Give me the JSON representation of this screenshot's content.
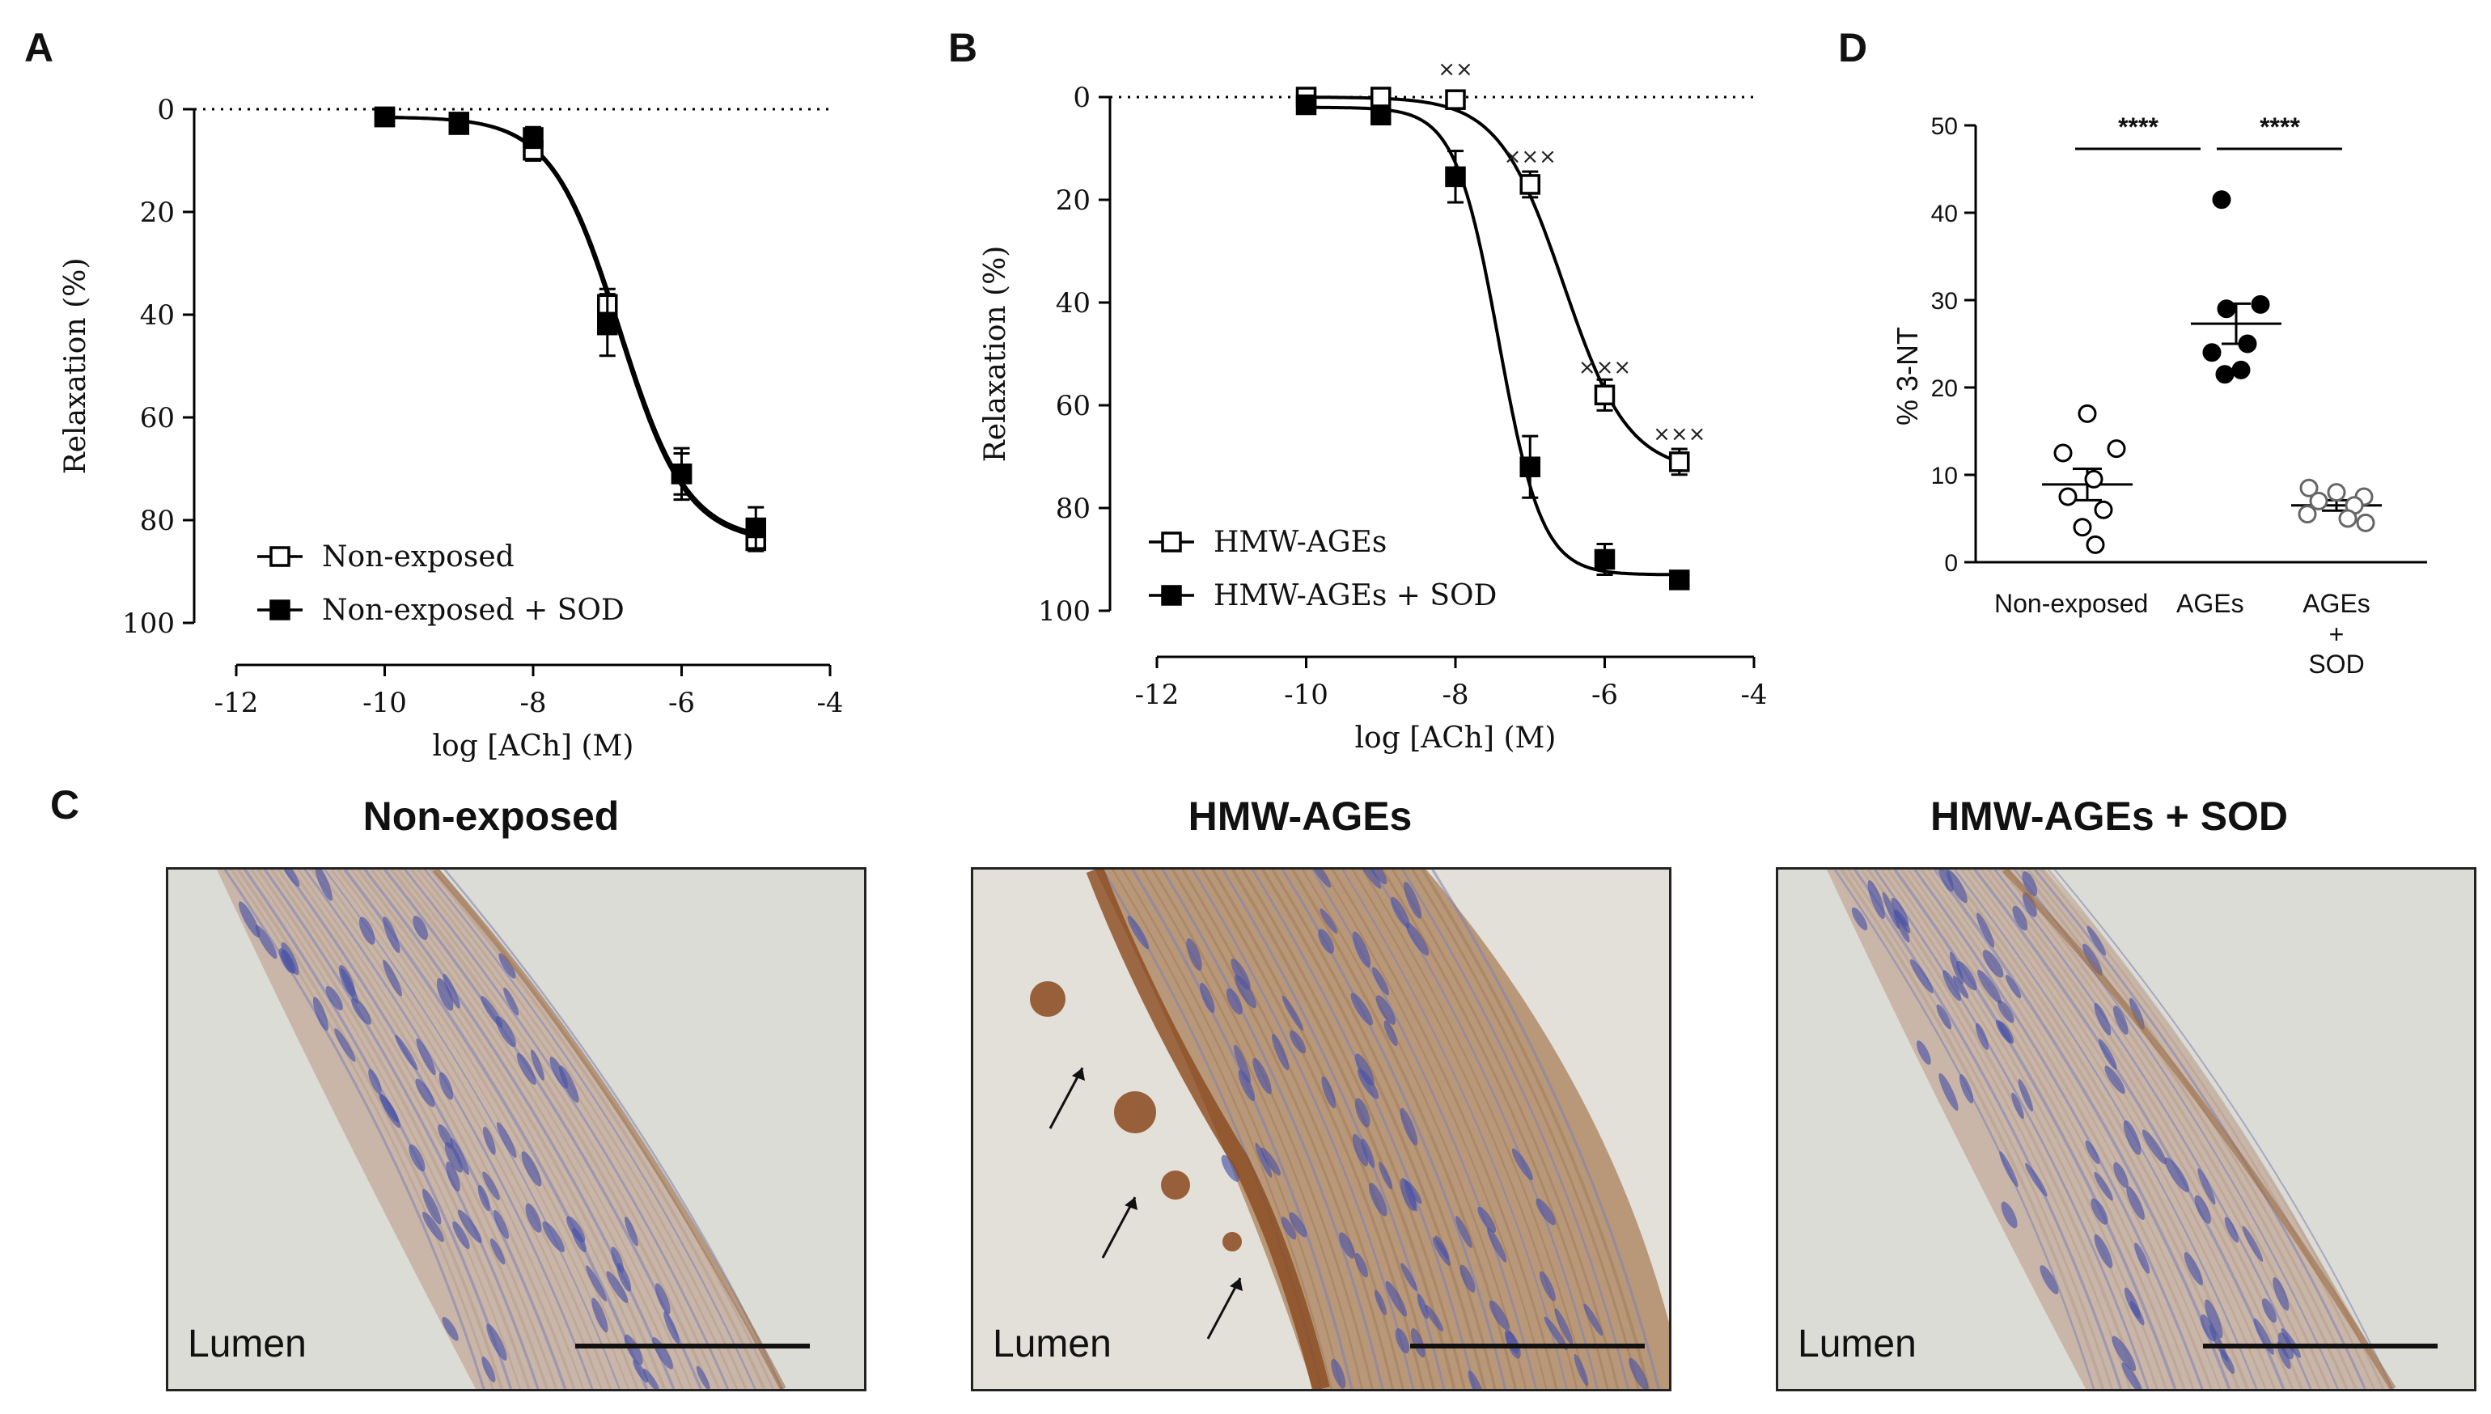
{
  "panels": {
    "A": "A",
    "B": "B",
    "C": "C",
    "D": "D"
  },
  "chart_data": [
    {
      "type": "scatter",
      "panel": "A",
      "xlabel": "log [ACh] (M)",
      "ylabel": "Relaxation (%)",
      "xticks": [
        -12,
        -10,
        -8,
        -6,
        -4
      ],
      "yticks": [
        0,
        20,
        40,
        60,
        80,
        100
      ],
      "xlim": [
        -12,
        -4
      ],
      "ylim": [
        0,
        100
      ],
      "y_inverted": true,
      "reference_line": 0,
      "legend_position": "bottom-left",
      "series": [
        {
          "name": "Non-exposed",
          "marker": "open-square",
          "color": "#000000",
          "x": [
            -10,
            -9,
            -8,
            -7,
            -6,
            -5
          ],
          "y": [
            1.5,
            2.5,
            8,
            38,
            71,
            84
          ],
          "err": [
            1,
            1.5,
            2,
            3,
            4,
            2
          ],
          "fit": {
            "bottom": 1.5,
            "top": 84.5,
            "logEC50": -6.85,
            "hill": 0.95
          }
        },
        {
          "name": "Non-exposed + SOD",
          "marker": "filled-square",
          "color": "#000000",
          "x": [
            -10,
            -9,
            -8,
            -7,
            -6,
            -5
          ],
          "y": [
            1.5,
            3,
            5.5,
            42,
            71,
            81.5
          ],
          "err": [
            1,
            1,
            2,
            6,
            5,
            4
          ],
          "fit": {
            "bottom": 1.5,
            "top": 84,
            "logEC50": -6.83,
            "hill": 0.95
          }
        }
      ]
    },
    {
      "type": "scatter",
      "panel": "B",
      "xlabel": "log [ACh] (M)",
      "ylabel": "Relaxation (%)",
      "xticks": [
        -12,
        -10,
        -8,
        -6,
        -4
      ],
      "yticks": [
        0,
        20,
        40,
        60,
        80,
        100
      ],
      "xlim": [
        -12,
        -4
      ],
      "ylim": [
        0,
        100
      ],
      "y_inverted": true,
      "reference_line": 0,
      "legend_position": "bottom-left",
      "annotations": [
        {
          "text": "××",
          "x": -8,
          "y": 0
        },
        {
          "text": "×××",
          "x": -7,
          "y": 17
        },
        {
          "text": "×××",
          "x": -6,
          "y": 58
        },
        {
          "text": "×××",
          "x": -5,
          "y": 71
        }
      ],
      "series": [
        {
          "name": "HMW-AGEs",
          "marker": "open-square",
          "color": "#000000",
          "x": [
            -10,
            -9,
            -8,
            -7,
            -6,
            -5
          ],
          "y": [
            0,
            0,
            0.5,
            17,
            58,
            71
          ],
          "err": [
            0.5,
            0.5,
            1,
            2.5,
            3,
            2.5
          ],
          "fit": {
            "bottom": 0,
            "top": 73,
            "logEC50": -6.55,
            "hill": 1.0
          }
        },
        {
          "name": "HMW-AGEs + SOD",
          "marker": "filled-square",
          "color": "#000000",
          "x": [
            -10,
            -9,
            -8,
            -7,
            -6,
            -5
          ],
          "y": [
            1.5,
            3.5,
            15.5,
            72,
            90,
            94
          ],
          "err": [
            1,
            1.5,
            5,
            6,
            3,
            1
          ],
          "fit": {
            "bottom": 2,
            "top": 93,
            "logEC50": -7.42,
            "hill": 1.5
          }
        }
      ]
    },
    {
      "type": "scatter",
      "panel": "D",
      "ylabel": "% 3-NT",
      "yticks": [
        0,
        10,
        20,
        30,
        40,
        50
      ],
      "ylim": [
        0,
        50
      ],
      "categories": [
        "Non-exposed",
        "AGEs",
        "AGEs\n+\nSOD"
      ],
      "category_labels": [
        "Non-exposed",
        "AGEs",
        "AGEs",
        "+",
        "SOD"
      ],
      "significance": [
        "****",
        "****"
      ],
      "series": [
        {
          "name": "Non-exposed",
          "marker": "open-circle",
          "color": "#000000",
          "values": [
            17,
            13,
            12.5,
            9.5,
            7.5,
            6,
            4,
            2
          ],
          "mean": 8.9,
          "sem": 1.8
        },
        {
          "name": "AGEs",
          "marker": "filled-circle",
          "color": "#000000",
          "values": [
            41.5,
            29.5,
            29,
            25,
            24,
            22,
            21.5
          ],
          "mean": 27.3,
          "sem": 2.3
        },
        {
          "name": "AGEs + SOD",
          "marker": "open-circle-grey",
          "color": "#777777",
          "values": [
            8.5,
            8,
            7.5,
            7,
            6.5,
            5.5,
            5,
            4.5
          ],
          "mean": 6.5,
          "sem": 0.6
        }
      ]
    }
  ],
  "micrographs": [
    {
      "title": "Non-exposed",
      "lumen_label": "Lumen",
      "stain": "light",
      "arrows": 0
    },
    {
      "title": "HMW-AGEs",
      "lumen_label": "Lumen",
      "stain": "strong",
      "arrows": 3
    },
    {
      "title": "HMW-AGEs + SOD",
      "lumen_label": "Lumen",
      "stain": "light",
      "arrows": 0
    }
  ]
}
